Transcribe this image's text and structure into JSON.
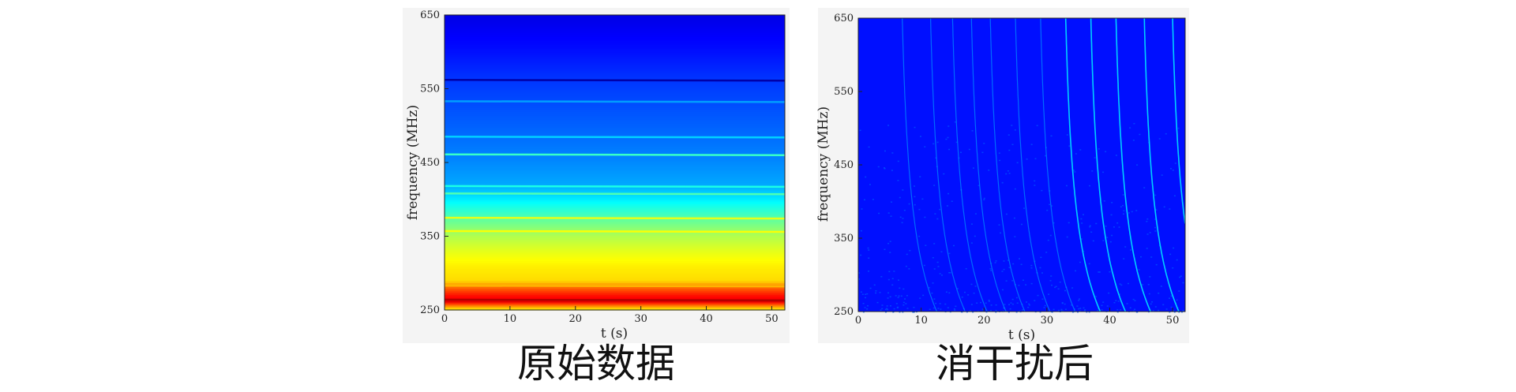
{
  "captions": {
    "left": "原始数据",
    "right": "消干扰后"
  },
  "chart_data": [
    {
      "type": "heatmap",
      "panel": "left",
      "xlabel": "t (s)",
      "ylabel": "frequency (MHz)",
      "xlim": [
        0,
        52
      ],
      "ylim": [
        250,
        650
      ],
      "xticks": [
        0,
        10,
        20,
        30,
        40,
        50
      ],
      "yticks": [
        250,
        350,
        450,
        550,
        650
      ],
      "colormap": "jet",
      "base_profile": [
        {
          "f": 250,
          "v": 0.62
        },
        {
          "f": 255,
          "v": 0.72
        },
        {
          "f": 262,
          "v": 0.9
        },
        {
          "f": 270,
          "v": 0.86
        },
        {
          "f": 280,
          "v": 0.78
        },
        {
          "f": 290,
          "v": 0.66
        },
        {
          "f": 310,
          "v": 0.64
        },
        {
          "f": 330,
          "v": 0.6
        },
        {
          "f": 350,
          "v": 0.55
        },
        {
          "f": 370,
          "v": 0.48
        },
        {
          "f": 385,
          "v": 0.42
        },
        {
          "f": 400,
          "v": 0.36
        },
        {
          "f": 420,
          "v": 0.29
        },
        {
          "f": 450,
          "v": 0.26
        },
        {
          "f": 500,
          "v": 0.22
        },
        {
          "f": 560,
          "v": 0.18
        },
        {
          "f": 600,
          "v": 0.14
        },
        {
          "f": 650,
          "v": 0.1
        }
      ],
      "rfi_lines": [
        {
          "f": 264,
          "v": 0.95
        },
        {
          "f": 283,
          "v": 0.7
        },
        {
          "f": 357,
          "v": 0.62
        },
        {
          "f": 375,
          "v": 0.6
        },
        {
          "f": 408,
          "v": 0.45
        },
        {
          "f": 418,
          "v": 0.4
        },
        {
          "f": 461,
          "v": 0.43
        },
        {
          "f": 485,
          "v": 0.33
        },
        {
          "f": 533,
          "v": 0.28
        },
        {
          "f": 562,
          "v": 0.04
        }
      ]
    },
    {
      "type": "heatmap",
      "panel": "right",
      "xlabel": "t (s)",
      "ylabel": "frequency (MHz)",
      "xlim": [
        0,
        52
      ],
      "ylim": [
        250,
        650
      ],
      "xticks": [
        0,
        10,
        20,
        30,
        40,
        50
      ],
      "yticks": [
        250,
        350,
        450,
        550,
        650
      ],
      "colormap": "jet",
      "background_value": 0.14,
      "dispersed_pulses_t_at_650MHz": [
        7,
        11.5,
        15,
        18,
        21,
        25,
        29,
        33,
        37,
        41,
        45.5,
        50
      ]
    }
  ]
}
